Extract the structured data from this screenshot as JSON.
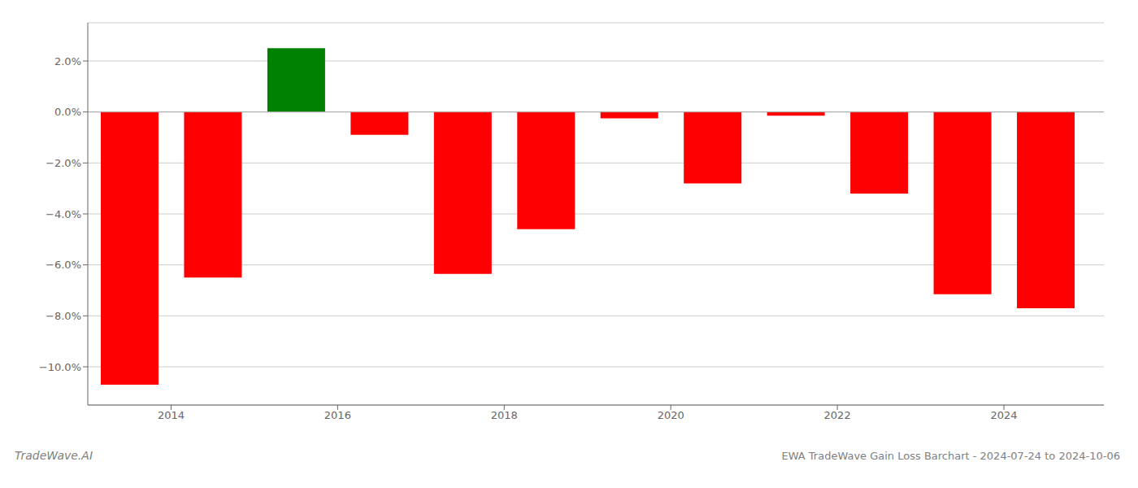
{
  "chart_data": {
    "type": "bar",
    "title": "EWA TradeWave Gain Loss Barchart - 2024-07-24 to 2024-10-06",
    "annotations": [
      "TradeWave.AI"
    ],
    "x": [
      2013.5,
      2014.5,
      2015.5,
      2016.5,
      2017.5,
      2018.5,
      2019.5,
      2020.5,
      2021.5,
      2022.5,
      2023.5,
      2024.5
    ],
    "values": [
      -10.7,
      -6.5,
      2.5,
      -0.9,
      -6.35,
      -4.6,
      -0.25,
      -2.8,
      -0.15,
      -3.2,
      -7.15,
      -7.7
    ],
    "colors": [
      "#ff0000",
      "#ff0000",
      "#008000",
      "#ff0000",
      "#ff0000",
      "#ff0000",
      "#ff0000",
      "#ff0000",
      "#ff0000",
      "#ff0000",
      "#ff0000",
      "#ff0000"
    ],
    "xlim": [
      2013.0,
      2025.2
    ],
    "xticks": [
      2014,
      2016,
      2018,
      2020,
      2022,
      2024
    ],
    "ylim": [
      -11.5,
      3.5
    ],
    "yticks": [
      {
        "value": 2.0,
        "label": "2.0%"
      },
      {
        "value": 0.0,
        "label": "0.0%"
      },
      {
        "value": -2.0,
        "label": "−2.0%"
      },
      {
        "value": -4.0,
        "label": "−4.0%"
      },
      {
        "value": -6.0,
        "label": "−6.0%"
      },
      {
        "value": -8.0,
        "label": "−8.0%"
      },
      {
        "value": -10.0,
        "label": "−10.0%"
      }
    ],
    "grid": true
  }
}
